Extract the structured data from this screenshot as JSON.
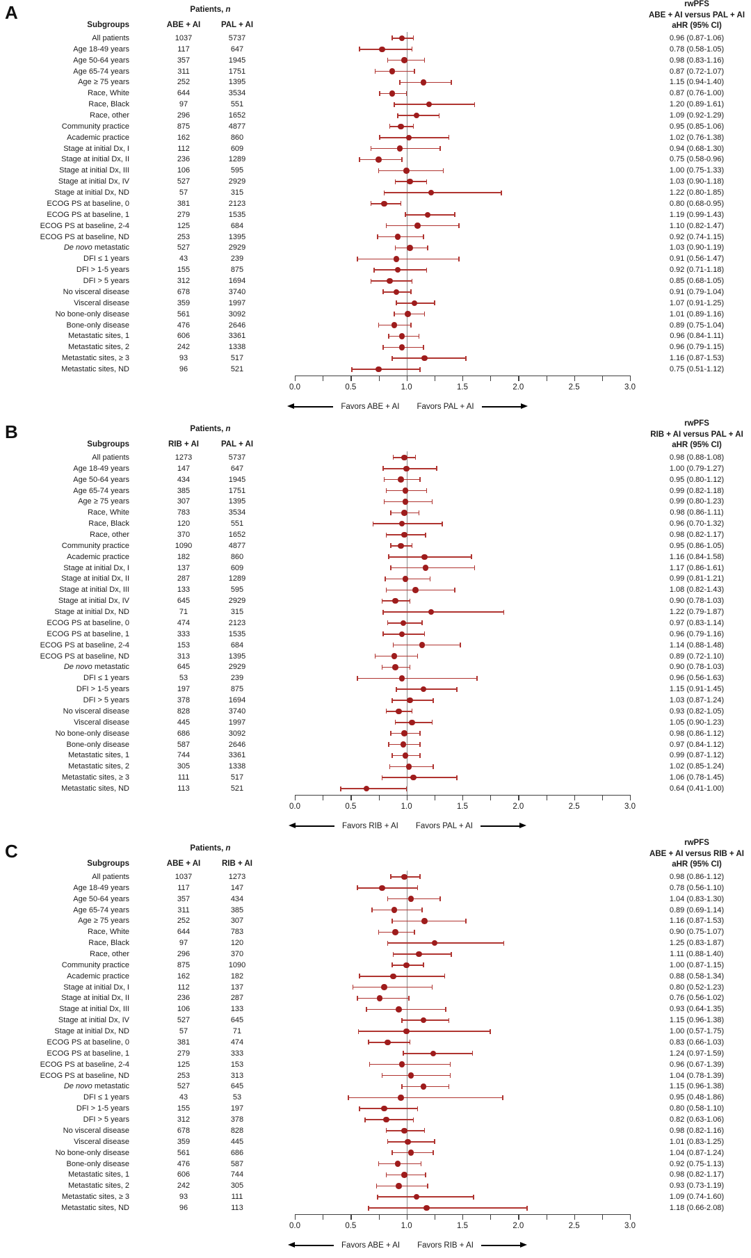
{
  "figure": {
    "patients_header": "Patients, n",
    "subgroups_header": "Subgroups",
    "axis": {
      "min": 0,
      "max": 3,
      "minor_step": 0.25,
      "ref_line": 1.0,
      "tick_labels": [
        "0.0",
        "0.5",
        "1.0",
        "1.5",
        "2.0",
        "2.5",
        "3.0"
      ]
    },
    "colors": {
      "marker": "#9E1C1C",
      "ci": "#B03430",
      "ref_line": "#8B8B8B",
      "axis": "#3F3F3F",
      "text": "#1A1A1A"
    },
    "italic_terms": [
      "De novo"
    ]
  },
  "chart_data": [
    {
      "type": "forest",
      "panel_letter": "A",
      "outcome_title": [
        "rwPFS",
        "ABE + AI versus PAL + AI",
        "aHR (95% CI)"
      ],
      "col1_header": "ABE + AI",
      "col2_header": "PAL + AI",
      "favors_left": "Favors ABE + AI",
      "favors_right": "Favors PAL + AI",
      "xlim": [
        0,
        3
      ],
      "row_schema": [
        "subgroup",
        "n1",
        "n2",
        "hr",
        "ci_low",
        "ci_high",
        "hr_label"
      ],
      "rows": [
        [
          "All patients",
          1037,
          5737,
          0.96,
          0.87,
          1.06,
          "0.96 (0.87-1.06)"
        ],
        [
          "Age 18-49 years",
          117,
          647,
          0.78,
          0.58,
          1.05,
          "0.78 (0.58-1.05)"
        ],
        [
          "Age 50-64 years",
          357,
          1945,
          0.98,
          0.83,
          1.16,
          "0.98 (0.83-1.16)"
        ],
        [
          "Age 65-74 years",
          311,
          1751,
          0.87,
          0.72,
          1.07,
          "0.87 (0.72-1.07)"
        ],
        [
          "Age ≥ 75 years",
          252,
          1395,
          1.15,
          0.94,
          1.4,
          "1.15 (0.94-1.40)"
        ],
        [
          "Race, White",
          644,
          3534,
          0.87,
          0.76,
          1.0,
          "0.87 (0.76-1.00)"
        ],
        [
          "Race, Black",
          97,
          551,
          1.2,
          0.89,
          1.61,
          "1.20 (0.89-1.61)"
        ],
        [
          "Race, other",
          296,
          1652,
          1.09,
          0.92,
          1.29,
          "1.09 (0.92-1.29)"
        ],
        [
          "Community practice",
          875,
          4877,
          0.95,
          0.85,
          1.06,
          "0.95 (0.85-1.06)"
        ],
        [
          "Academic practice",
          162,
          860,
          1.02,
          0.76,
          1.38,
          "1.02 (0.76-1.38)"
        ],
        [
          "Stage at initial Dx, I",
          112,
          609,
          0.94,
          0.68,
          1.3,
          "0.94 (0.68-1.30)"
        ],
        [
          "Stage at initial Dx, II",
          236,
          1289,
          0.75,
          0.58,
          0.96,
          "0.75 (0.58-0.96)"
        ],
        [
          "Stage at initial Dx, III",
          106,
          595,
          1.0,
          0.75,
          1.33,
          "1.00 (0.75-1.33)"
        ],
        [
          "Stage at initial Dx, IV",
          527,
          2929,
          1.03,
          0.9,
          1.18,
          "1.03 (0.90-1.18)"
        ],
        [
          "Stage at initial Dx, ND",
          57,
          315,
          1.22,
          0.8,
          1.85,
          "1.22 (0.80-1.85)"
        ],
        [
          "ECOG PS at baseline, 0",
          381,
          2123,
          0.8,
          0.68,
          0.95,
          "0.80 (0.68-0.95)"
        ],
        [
          "ECOG PS at baseline, 1",
          279,
          1535,
          1.19,
          0.99,
          1.43,
          "1.19 (0.99-1.43)"
        ],
        [
          "ECOG PS at baseline, 2-4",
          125,
          684,
          1.1,
          0.82,
          1.47,
          "1.10 (0.82-1.47)"
        ],
        [
          "ECOG PS at baseline, ND",
          253,
          1395,
          0.92,
          0.74,
          1.15,
          "0.92 (0.74-1.15)"
        ],
        [
          "De novo metastatic",
          527,
          2929,
          1.03,
          0.9,
          1.19,
          "1.03 (0.90-1.19)"
        ],
        [
          "DFI ≤ 1 years",
          43,
          239,
          0.91,
          0.56,
          1.47,
          "0.91 (0.56-1.47)"
        ],
        [
          "DFI > 1-5 years",
          155,
          875,
          0.92,
          0.71,
          1.18,
          "0.92 (0.71-1.18)"
        ],
        [
          "DFI > 5 years",
          312,
          1694,
          0.85,
          0.68,
          1.05,
          "0.85 (0.68-1.05)"
        ],
        [
          "No visceral disease",
          678,
          3740,
          0.91,
          0.79,
          1.04,
          "0.91 (0.79-1.04)"
        ],
        [
          "Visceral disease",
          359,
          1997,
          1.07,
          0.91,
          1.25,
          "1.07 (0.91-1.25)"
        ],
        [
          "No bone-only disease",
          561,
          3092,
          1.01,
          0.89,
          1.16,
          "1.01 (0.89-1.16)"
        ],
        [
          "Bone-only disease",
          476,
          2646,
          0.89,
          0.75,
          1.04,
          "0.89 (0.75-1.04)"
        ],
        [
          "Metastatic sites, 1",
          606,
          3361,
          0.96,
          0.84,
          1.11,
          "0.96 (0.84-1.11)"
        ],
        [
          "Metastatic sites, 2",
          242,
          1338,
          0.96,
          0.79,
          1.15,
          "0.96 (0.79-1.15)"
        ],
        [
          "Metastatic sites, ≥ 3",
          93,
          517,
          1.16,
          0.87,
          1.53,
          "1.16 (0.87-1.53)"
        ],
        [
          "Metastatic sites, ND",
          96,
          521,
          0.75,
          0.51,
          1.12,
          "0.75 (0.51-1.12)"
        ]
      ]
    },
    {
      "type": "forest",
      "panel_letter": "B",
      "outcome_title": [
        "rwPFS",
        "RIB + AI versus PAL + AI",
        "aHR (95% CI)"
      ],
      "col1_header": "RIB + AI",
      "col2_header": "PAL + AI",
      "favors_left": "Favors RIB + AI",
      "favors_right": "Favors PAL + AI",
      "xlim": [
        0,
        3
      ],
      "row_schema": [
        "subgroup",
        "n1",
        "n2",
        "hr",
        "ci_low",
        "ci_high",
        "hr_label"
      ],
      "rows": [
        [
          "All patients",
          1273,
          5737,
          0.98,
          0.88,
          1.08,
          "0.98 (0.88-1.08)"
        ],
        [
          "Age 18-49 years",
          147,
          647,
          1.0,
          0.79,
          1.27,
          "1.00 (0.79-1.27)"
        ],
        [
          "Age 50-64 years",
          434,
          1945,
          0.95,
          0.8,
          1.12,
          "0.95 (0.80-1.12)"
        ],
        [
          "Age 65-74 years",
          385,
          1751,
          0.99,
          0.82,
          1.18,
          "0.99 (0.82-1.18)"
        ],
        [
          "Age ≥ 75 years",
          307,
          1395,
          0.99,
          0.8,
          1.23,
          "0.99 (0.80-1.23)"
        ],
        [
          "Race, White",
          783,
          3534,
          0.98,
          0.86,
          1.11,
          "0.98 (0.86-1.11)"
        ],
        [
          "Race, Black",
          120,
          551,
          0.96,
          0.7,
          1.32,
          "0.96 (0.70-1.32)"
        ],
        [
          "Race, other",
          370,
          1652,
          0.98,
          0.82,
          1.17,
          "0.98 (0.82-1.17)"
        ],
        [
          "Community practice",
          1090,
          4877,
          0.95,
          0.86,
          1.05,
          "0.95 (0.86-1.05)"
        ],
        [
          "Academic practice",
          182,
          860,
          1.16,
          0.84,
          1.58,
          "1.16 (0.84-1.58)"
        ],
        [
          "Stage at initial Dx, I",
          137,
          609,
          1.17,
          0.86,
          1.61,
          "1.17 (0.86-1.61)"
        ],
        [
          "Stage at initial Dx, II",
          287,
          1289,
          0.99,
          0.81,
          1.21,
          "0.99 (0.81-1.21)"
        ],
        [
          "Stage at initial Dx, III",
          133,
          595,
          1.08,
          0.82,
          1.43,
          "1.08 (0.82-1.43)"
        ],
        [
          "Stage at initial Dx, IV",
          645,
          2929,
          0.9,
          0.78,
          1.03,
          "0.90 (0.78-1.03)"
        ],
        [
          "Stage at initial Dx, ND",
          71,
          315,
          1.22,
          0.79,
          1.87,
          "1.22 (0.79-1.87)"
        ],
        [
          "ECOG PS at baseline, 0",
          474,
          2123,
          0.97,
          0.83,
          1.14,
          "0.97 (0.83-1.14)"
        ],
        [
          "ECOG PS at baseline, 1",
          333,
          1535,
          0.96,
          0.79,
          1.16,
          "0.96 (0.79-1.16)"
        ],
        [
          "ECOG PS at baseline, 2-4",
          153,
          684,
          1.14,
          0.88,
          1.48,
          "1.14 (0.88-1.48)"
        ],
        [
          "ECOG PS at baseline, ND",
          313,
          1395,
          0.89,
          0.72,
          1.1,
          "0.89 (0.72-1.10)"
        ],
        [
          "De novo metastatic",
          645,
          2929,
          0.9,
          0.78,
          1.03,
          "0.90 (0.78-1.03)"
        ],
        [
          "DFI ≤ 1 years",
          53,
          239,
          0.96,
          0.56,
          1.63,
          "0.96 (0.56-1.63)"
        ],
        [
          "DFI > 1-5 years",
          197,
          875,
          1.15,
          0.91,
          1.45,
          "1.15 (0.91-1.45)"
        ],
        [
          "DFI > 5 years",
          378,
          1694,
          1.03,
          0.87,
          1.24,
          "1.03 (0.87-1.24)"
        ],
        [
          "No visceral disease",
          828,
          3740,
          0.93,
          0.82,
          1.05,
          "0.93 (0.82-1.05)"
        ],
        [
          "Visceral disease",
          445,
          1997,
          1.05,
          0.9,
          1.23,
          "1.05 (0.90-1.23)"
        ],
        [
          "No bone-only disease",
          686,
          3092,
          0.98,
          0.86,
          1.12,
          "0.98 (0.86-1.12)"
        ],
        [
          "Bone-only disease",
          587,
          2646,
          0.97,
          0.84,
          1.12,
          "0.97 (0.84-1.12)"
        ],
        [
          "Metastatic sites, 1",
          744,
          3361,
          0.99,
          0.87,
          1.12,
          "0.99 (0.87-1.12)"
        ],
        [
          "Metastatic sites, 2",
          305,
          1338,
          1.02,
          0.85,
          1.24,
          "1.02 (0.85-1.24)"
        ],
        [
          "Metastatic sites, ≥ 3",
          111,
          517,
          1.06,
          0.78,
          1.45,
          "1.06 (0.78-1.45)"
        ],
        [
          "Metastatic sites, ND",
          113,
          521,
          0.64,
          0.41,
          1.0,
          "0.64 (0.41-1.00)"
        ]
      ]
    },
    {
      "type": "forest",
      "panel_letter": "C",
      "outcome_title": [
        "rwPFS",
        "ABE + AI versus RIB + AI",
        "aHR (95% CI)"
      ],
      "col1_header": "ABE + AI",
      "col2_header": "RIB + AI",
      "favors_left": "Favors ABE + AI",
      "favors_right": "Favors RIB + AI",
      "xlim": [
        0,
        3
      ],
      "row_schema": [
        "subgroup",
        "n1",
        "n2",
        "hr",
        "ci_low",
        "ci_high",
        "hr_label"
      ],
      "rows": [
        [
          "All patients",
          1037,
          1273,
          0.98,
          0.86,
          1.12,
          "0.98 (0.86-1.12)"
        ],
        [
          "Age 18-49 years",
          117,
          147,
          0.78,
          0.56,
          1.1,
          "0.78 (0.56-1.10)"
        ],
        [
          "Age 50-64 years",
          357,
          434,
          1.04,
          0.83,
          1.3,
          "1.04 (0.83-1.30)"
        ],
        [
          "Age 65-74 years",
          311,
          385,
          0.89,
          0.69,
          1.14,
          "0.89 (0.69-1.14)"
        ],
        [
          "Age ≥ 75 years",
          252,
          307,
          1.16,
          0.87,
          1.53,
          "1.16 (0.87-1.53)"
        ],
        [
          "Race, White",
          644,
          783,
          0.9,
          0.75,
          1.07,
          "0.90 (0.75-1.07)"
        ],
        [
          "Race, Black",
          97,
          120,
          1.25,
          0.83,
          1.87,
          "1.25 (0.83-1.87)"
        ],
        [
          "Race, other",
          296,
          370,
          1.11,
          0.88,
          1.4,
          "1.11 (0.88-1.40)"
        ],
        [
          "Community practice",
          875,
          1090,
          1.0,
          0.87,
          1.15,
          "1.00 (0.87-1.15)"
        ],
        [
          "Academic practice",
          162,
          182,
          0.88,
          0.58,
          1.34,
          "0.88 (0.58-1.34)"
        ],
        [
          "Stage at initial Dx, I",
          112,
          137,
          0.8,
          0.52,
          1.23,
          "0.80 (0.52-1.23)"
        ],
        [
          "Stage at initial Dx, II",
          236,
          287,
          0.76,
          0.56,
          1.02,
          "0.76 (0.56-1.02)"
        ],
        [
          "Stage at initial Dx, III",
          106,
          133,
          0.93,
          0.64,
          1.35,
          "0.93 (0.64-1.35)"
        ],
        [
          "Stage at initial Dx, IV",
          527,
          645,
          1.15,
          0.96,
          1.38,
          "1.15 (0.96-1.38)"
        ],
        [
          "Stage at initial Dx, ND",
          57,
          71,
          1.0,
          0.57,
          1.75,
          "1.00 (0.57-1.75)"
        ],
        [
          "ECOG PS at baseline, 0",
          381,
          474,
          0.83,
          0.66,
          1.03,
          "0.83 (0.66-1.03)"
        ],
        [
          "ECOG PS at baseline, 1",
          279,
          333,
          1.24,
          0.97,
          1.59,
          "1.24 (0.97-1.59)"
        ],
        [
          "ECOG PS at baseline, 2-4",
          125,
          153,
          0.96,
          0.67,
          1.39,
          "0.96 (0.67-1.39)"
        ],
        [
          "ECOG PS at baseline, ND",
          253,
          313,
          1.04,
          0.78,
          1.39,
          "1.04 (0.78-1.39)"
        ],
        [
          "De novo metastatic",
          527,
          645,
          1.15,
          0.96,
          1.38,
          "1.15 (0.96-1.38)"
        ],
        [
          "DFI ≤ 1 years",
          43,
          53,
          0.95,
          0.48,
          1.86,
          "0.95 (0.48-1.86)"
        ],
        [
          "DFI > 1-5 years",
          155,
          197,
          0.8,
          0.58,
          1.1,
          "0.80 (0.58-1.10)"
        ],
        [
          "DFI > 5 years",
          312,
          378,
          0.82,
          0.63,
          1.06,
          "0.82 (0.63-1.06)"
        ],
        [
          "No visceral disease",
          678,
          828,
          0.98,
          0.82,
          1.16,
          "0.98 (0.82-1.16)"
        ],
        [
          "Visceral disease",
          359,
          445,
          1.01,
          0.83,
          1.25,
          "1.01 (0.83-1.25)"
        ],
        [
          "No bone-only disease",
          561,
          686,
          1.04,
          0.87,
          1.24,
          "1.04 (0.87-1.24)"
        ],
        [
          "Bone-only disease",
          476,
          587,
          0.92,
          0.75,
          1.13,
          "0.92 (0.75-1.13)"
        ],
        [
          "Metastatic sites, 1",
          606,
          744,
          0.98,
          0.82,
          1.17,
          "0.98 (0.82-1.17)"
        ],
        [
          "Metastatic sites, 2",
          242,
          305,
          0.93,
          0.73,
          1.19,
          "0.93 (0.73-1.19)"
        ],
        [
          "Metastatic sites, ≥ 3",
          93,
          111,
          1.09,
          0.74,
          1.6,
          "1.09 (0.74-1.60)"
        ],
        [
          "Metastatic sites, ND",
          96,
          113,
          1.18,
          0.66,
          2.08,
          "1.18 (0.66-2.08)"
        ]
      ]
    }
  ]
}
